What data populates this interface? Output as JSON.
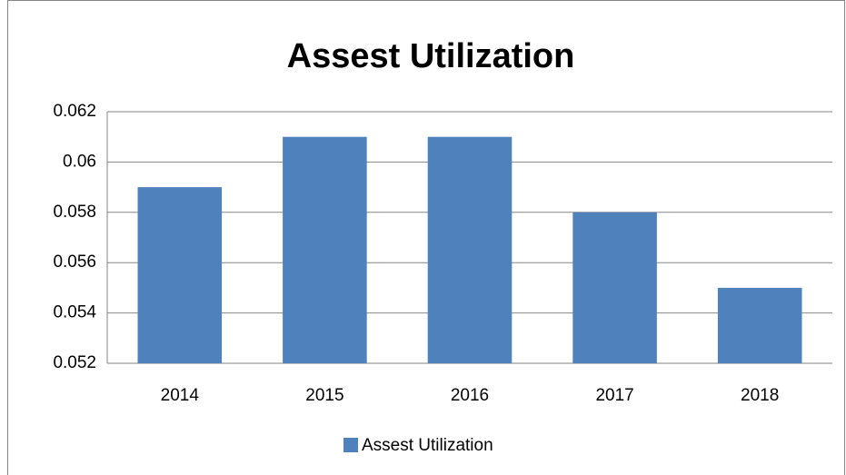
{
  "chart_data": {
    "type": "bar",
    "title": "Assest Utilization",
    "categories": [
      "2014",
      "2015",
      "2016",
      "2017",
      "2018"
    ],
    "series": [
      {
        "name": "Assest Utilization",
        "color": "#4f81bd",
        "values": [
          0.059,
          0.061,
          0.061,
          0.058,
          0.055
        ]
      }
    ],
    "ylim": [
      0.052,
      0.062
    ],
    "yticks": [
      0.052,
      0.054,
      0.056,
      0.058,
      0.06,
      0.062
    ],
    "grid": true,
    "legend": "bottom"
  }
}
